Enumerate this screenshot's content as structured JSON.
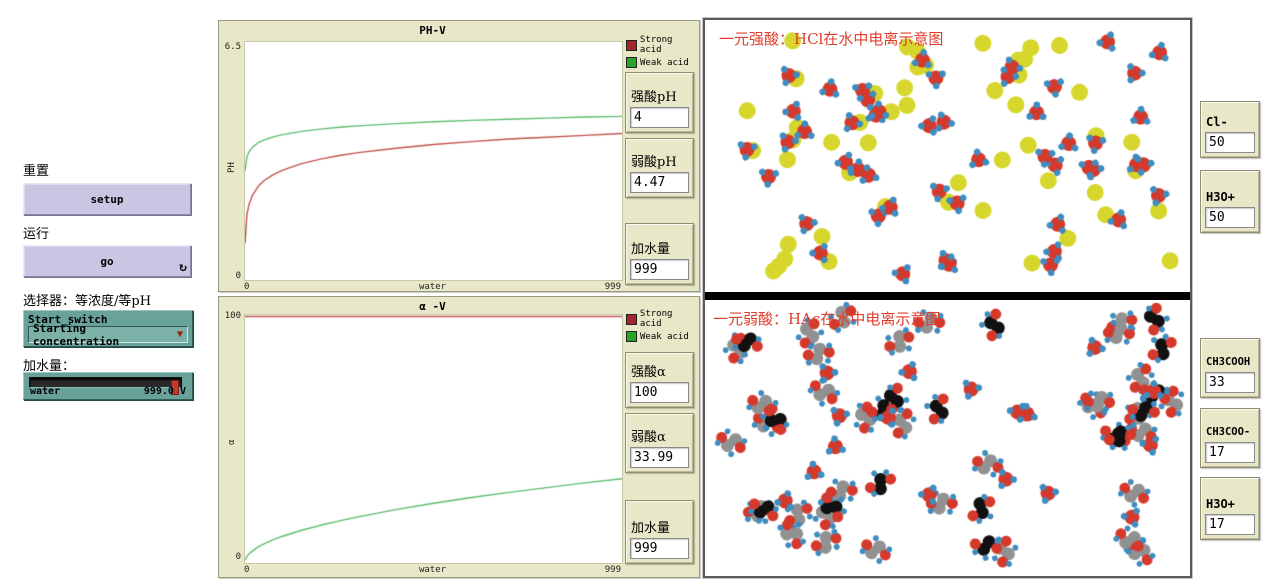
{
  "colors": {
    "widget_beige": "#e8e8c8",
    "button_lavender": "#c9c6e3",
    "teal": "#68a29a",
    "teal_light": "#7cb1a8",
    "slider_handle_red": "#c0392b",
    "title_red": "#e03c2c",
    "particle_yellow": "#d6d62c",
    "particle_red": "#d5392c",
    "particle_blue": "#3e8cc0",
    "particle_gray": "#919191",
    "particle_black": "#111111"
  },
  "left_panel": {
    "reset_label": "重置",
    "setup_button": "setup",
    "run_label": "运行",
    "go_button": "go",
    "forever_icon": "↻",
    "chooser_label": "选择器：等浓度/等pH",
    "chooser_name": "Start_switch",
    "chooser_selected": "Starting concentration",
    "dropdown_icon": "▼",
    "water_label": "加水量：",
    "slider_name": "water",
    "slider_value": "999.0",
    "slider_unit": "V"
  },
  "chart_data": [
    {
      "type": "line",
      "title": "PH-V",
      "xlabel": "water",
      "ylabel": "PH",
      "xlim": [
        0,
        999
      ],
      "ylim": [
        0,
        6.5
      ],
      "xmin_label": "0",
      "xmax_label": "999",
      "ymin_label": "0",
      "ymax_label": "6.5",
      "grid": false,
      "legend_position": "top-right",
      "legend": [
        {
          "label": "Strong acid",
          "swatch": "#a2262c"
        },
        {
          "label": "Weak acid",
          "swatch": "#28a428"
        }
      ],
      "x": [
        0,
        5,
        10,
        20,
        35,
        50,
        75,
        100,
        150,
        200,
        250,
        300,
        400,
        500,
        600,
        700,
        800,
        900,
        999
      ],
      "series": [
        {
          "name": "Strong acid",
          "color": "#c0544c",
          "values": [
            1.0,
            1.78,
            2.04,
            2.32,
            2.56,
            2.71,
            2.88,
            3.0,
            3.18,
            3.3,
            3.4,
            3.48,
            3.6,
            3.7,
            3.78,
            3.85,
            3.9,
            3.95,
            4.0
          ]
        },
        {
          "name": "Weak acid",
          "color": "#5dbd6e",
          "values": [
            2.97,
            3.36,
            3.49,
            3.63,
            3.75,
            3.82,
            3.91,
            3.97,
            4.06,
            4.12,
            4.17,
            4.21,
            4.27,
            4.32,
            4.36,
            4.39,
            4.42,
            4.45,
            4.47
          ]
        }
      ]
    },
    {
      "type": "line",
      "title": "α -V",
      "xlabel": "water",
      "ylabel": "α",
      "xlim": [
        0,
        999
      ],
      "ylim": [
        0,
        100
      ],
      "xmin_label": "0",
      "xmax_label": "999",
      "ymin_label": "0",
      "ymax_label": "100",
      "grid": false,
      "legend_position": "top-right",
      "legend": [
        {
          "label": "Strong acid",
          "swatch": "#a2262c"
        },
        {
          "label": "Weak acid",
          "swatch": "#28a428"
        }
      ],
      "x": [
        0,
        5,
        10,
        20,
        35,
        50,
        75,
        100,
        150,
        200,
        250,
        300,
        400,
        500,
        600,
        700,
        800,
        900,
        999
      ],
      "series": [
        {
          "name": "Strong acid",
          "color": "#c0544c",
          "values": [
            100,
            100,
            100,
            100,
            100,
            100,
            100,
            100,
            100,
            100,
            100,
            100,
            100,
            100,
            100,
            100,
            100,
            100,
            100
          ]
        },
        {
          "name": "Weak acid",
          "color": "#5dbd6e",
          "values": [
            1.1,
            2.6,
            3.6,
            4.9,
            6.5,
            7.7,
            9.4,
            10.8,
            13.2,
            15.2,
            17.0,
            18.6,
            21.5,
            24.1,
            26.4,
            28.5,
            30.4,
            32.3,
            34.0
          ]
        }
      ]
    }
  ],
  "monitors_mid": [
    {
      "label": "强酸pH",
      "value": "4"
    },
    {
      "label": "弱酸pH",
      "value": "4.47"
    },
    {
      "label": "加水量",
      "value": "999"
    },
    {
      "label": "强酸α",
      "value": "100"
    },
    {
      "label": "弱酸α",
      "value": "33.99"
    },
    {
      "label": "加水量",
      "value": "999"
    }
  ],
  "view": {
    "seed": 20240607,
    "top": {
      "title": "一元强酸：HCl在水中电离示意图",
      "particles": [
        {
          "type": "chloride",
          "count": 50
        },
        {
          "type": "hydronium",
          "count": 50
        }
      ]
    },
    "bottom": {
      "title": "一元弱酸：HAc在水中电离示意图",
      "particles": [
        {
          "type": "acetic",
          "count": 33
        },
        {
          "type": "acetate",
          "count": 17
        },
        {
          "type": "hydronium",
          "count": 17
        }
      ]
    }
  },
  "right_monitors": [
    {
      "label": "Cl-",
      "value": "50"
    },
    {
      "label": "H3O+",
      "value": "50"
    },
    {
      "label": "CH3COOH",
      "value": "33"
    },
    {
      "label": "CH3COO-",
      "value": "17"
    },
    {
      "label": "H3O+",
      "value": "17"
    }
  ]
}
